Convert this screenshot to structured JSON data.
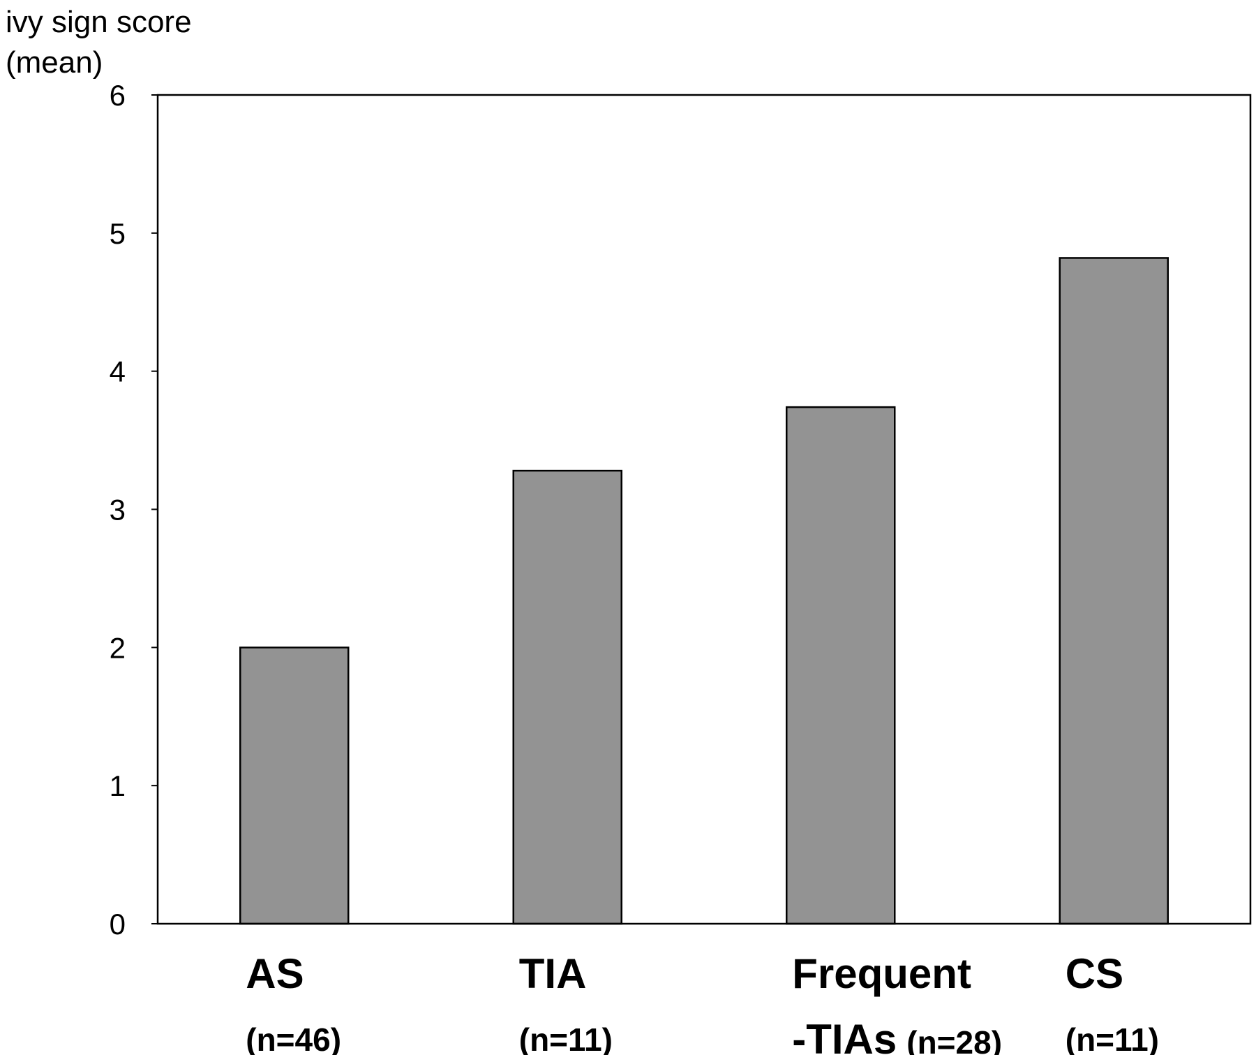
{
  "chart_data": {
    "type": "bar",
    "ylabel_lines": [
      "ivy sign score",
      "(mean)"
    ],
    "xlabel": "",
    "ylim": [
      0,
      6
    ],
    "yticks": [
      0,
      1,
      2,
      3,
      4,
      5,
      6
    ],
    "grid": false,
    "legend": "none",
    "categories": [
      {
        "name_lines": [
          "AS"
        ],
        "count": "(n=46)"
      },
      {
        "name_lines": [
          "TIA"
        ],
        "count": "(n=11)"
      },
      {
        "name_lines": [
          "Frequent",
          "-TIAs"
        ],
        "count": "(n=28)"
      },
      {
        "name_lines": [
          "CS"
        ],
        "count": "(n=11)"
      }
    ],
    "values": [
      2.0,
      3.28,
      3.74,
      4.82
    ],
    "colors": {
      "bar_fill": "#939393",
      "bar_stroke": "#000000",
      "axis": "#000000"
    }
  }
}
